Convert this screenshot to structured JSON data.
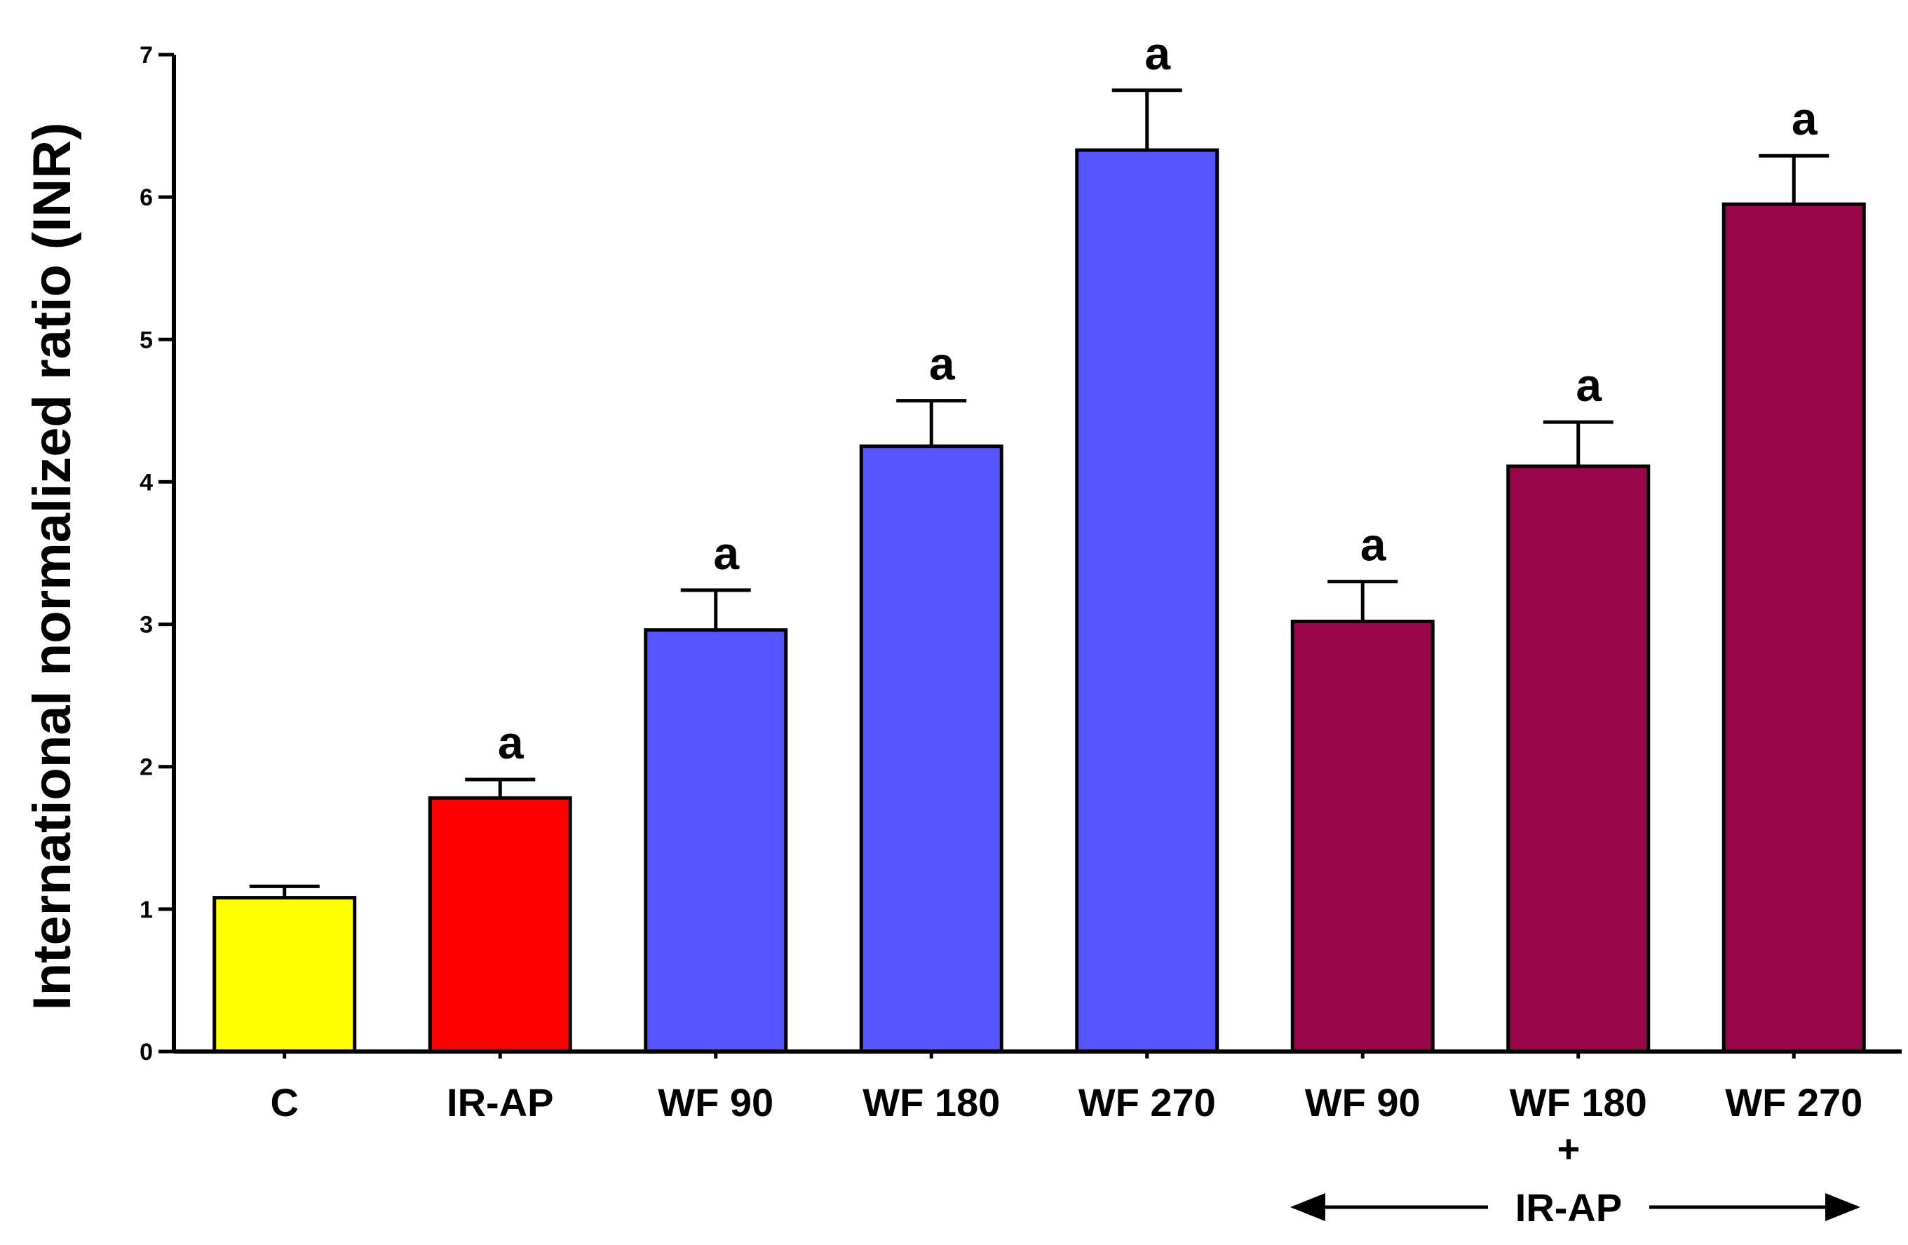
{
  "chart_data": {
    "type": "bar",
    "title": "",
    "xlabel": "",
    "ylabel": "International normalized ratio (INR)",
    "ylim": [
      0,
      7
    ],
    "yticks": [
      0,
      1,
      2,
      3,
      4,
      5,
      6,
      7
    ],
    "categories": [
      "C",
      "IR-AP",
      "WF 90",
      "WF 180",
      "WF 270",
      "WF 90",
      "WF 180",
      "WF 270"
    ],
    "values": [
      1.08,
      1.78,
      2.96,
      4.25,
      6.33,
      3.02,
      4.11,
      5.95
    ],
    "errors": [
      0.08,
      0.13,
      0.28,
      0.32,
      0.42,
      0.28,
      0.31,
      0.34
    ],
    "significance": [
      "",
      "a",
      "a",
      "a",
      "a",
      "a",
      "a",
      "a"
    ],
    "colors": [
      "#ffff00",
      "#ff0000",
      "#5555ff",
      "#5555ff",
      "#5555ff",
      "#99064a",
      "#99064a",
      "#99064a"
    ],
    "group_annotation": {
      "plus_sign": "+",
      "label": "IR-AP",
      "applies_to": [
        "WF 90",
        "WF 180",
        "WF 270"
      ]
    }
  }
}
